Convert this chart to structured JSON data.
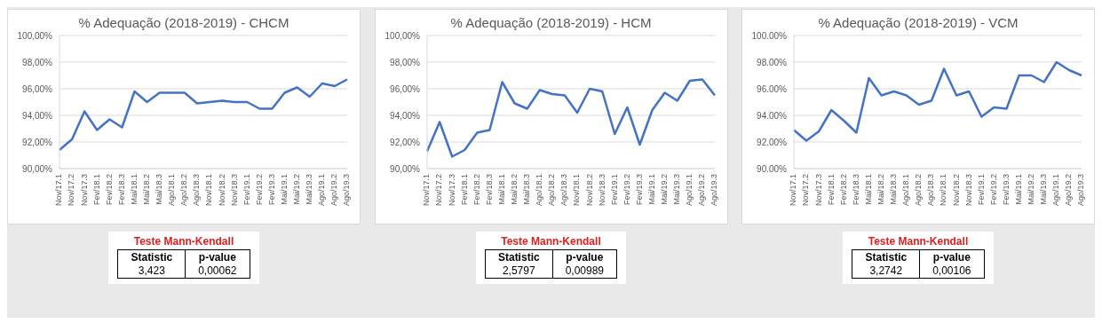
{
  "chart_data": [
    {
      "type": "line",
      "title": "% Adequação (2018-2019) - CHCM",
      "categories": [
        "Nov/17.1",
        "Nov/17.2",
        "Nov/17.3",
        "Fev/18.1",
        "Fev/18.2",
        "Fev/18.3",
        "Mai/18.1",
        "Mai/18.2",
        "Mai/18.3",
        "Ago/18.1",
        "Ago/18.2",
        "Ago/18.3",
        "Nov/18.1",
        "Nov/18.2",
        "Nov/18.3",
        "Fev/19.1",
        "Fev/19.2",
        "Fev/19.3",
        "Mai/19.1",
        "Mai/19.2",
        "Mai/19.3",
        "Ago/19.1",
        "Ago/19.2",
        "Ago/19.3"
      ],
      "series": [
        {
          "color": "#4472c4",
          "values": [
            91.4,
            92.2,
            94.3,
            92.9,
            93.7,
            93.1,
            95.8,
            95.0,
            95.7,
            95.7,
            95.7,
            94.9,
            95.0,
            95.1,
            95.0,
            95.0,
            94.5,
            94.5,
            95.7,
            96.1,
            95.4,
            96.4,
            96.2,
            96.7
          ]
        }
      ],
      "ylim": [
        90,
        100
      ],
      "yticks": [
        {
          "value": 90,
          "label": "90,00%"
        },
        {
          "value": 92,
          "label": "92,00%"
        },
        {
          "value": 94,
          "label": "94,00%"
        },
        {
          "value": 96,
          "label": "96,00%"
        },
        {
          "value": 98,
          "label": "98,00%"
        },
        {
          "value": 100,
          "label": "100,00%"
        }
      ],
      "grid": "y",
      "annotations": [
        "Teste Mann-Kendall",
        "Statistic",
        "p-value",
        "3,423",
        "0,00062"
      ]
    },
    {
      "type": "line",
      "title": "% Adequação (2018-2019) - HCM",
      "categories": [
        "Nov/17.1",
        "Nov/17.2",
        "Nov/17.3",
        "Fev/18.1",
        "Fev/18.2",
        "Fev/18.3",
        "Mai/18.1",
        "Mai/18.2",
        "Mai/18.3",
        "Ago/18.1",
        "Ago/18.2",
        "Ago/18.3",
        "Nov/18.1",
        "Nov/18.2",
        "Nov/18.3",
        "Fev/19.1",
        "Fev/19.2",
        "Fev/19.3",
        "Mai/19.1",
        "Mai/19.2",
        "Mai/19.3",
        "Ago/19.1",
        "Ago/19.2",
        "Ago/19.3"
      ],
      "series": [
        {
          "color": "#4472c4",
          "values": [
            91.3,
            93.5,
            90.9,
            91.4,
            92.7,
            92.9,
            96.5,
            94.9,
            94.5,
            95.9,
            95.6,
            95.5,
            94.2,
            96.0,
            95.8,
            92.6,
            94.6,
            91.8,
            94.4,
            95.7,
            95.1,
            96.6,
            96.7,
            95.5
          ]
        }
      ],
      "ylim": [
        90,
        100
      ],
      "yticks": [
        {
          "value": 90,
          "label": "90,00%"
        },
        {
          "value": 92,
          "label": "92,00%"
        },
        {
          "value": 94,
          "label": "94,00%"
        },
        {
          "value": 96,
          "label": "96,00%"
        },
        {
          "value": 98,
          "label": "98,00%"
        },
        {
          "value": 100,
          "label": "100,00%"
        }
      ],
      "grid": "y",
      "annotations": [
        "Teste Mann-Kendall",
        "Statistic",
        "p-value",
        "2,5797",
        "0,00989"
      ]
    },
    {
      "type": "line",
      "title": "% Adequação (2018-2019) - VCM",
      "categories": [
        "Nov/17.1",
        "Nov/17.2",
        "Nov/17.3",
        "Fev/18.1",
        "Fev/18.2",
        "Fev/18.3",
        "Mai/18.1",
        "Mai/18.2",
        "Mai/18.3",
        "Ago/18.1",
        "Ago/18.2",
        "Ago/18.3",
        "Nov/18.1",
        "Nov/18.2",
        "Nov/18.3",
        "Fev/19.1",
        "Fev/19.2",
        "Fev/19.3",
        "Mai/19.1",
        "Mai/19.2",
        "Mai/19.3",
        "Ago/19.1",
        "Ago/19.2",
        "Ago/19.3"
      ],
      "series": [
        {
          "color": "#4472c4",
          "values": [
            92.9,
            92.1,
            92.8,
            94.4,
            93.6,
            92.7,
            96.8,
            95.5,
            95.8,
            95.5,
            94.8,
            95.1,
            97.5,
            95.5,
            95.8,
            93.9,
            94.6,
            94.5,
            97.0,
            97.0,
            96.5,
            98.0,
            97.4,
            97.0
          ]
        }
      ],
      "ylim": [
        90,
        100
      ],
      "yticks": [
        {
          "value": 90,
          "label": "90.00%"
        },
        {
          "value": 92,
          "label": "92.00%"
        },
        {
          "value": 94,
          "label": "94.00%"
        },
        {
          "value": 96,
          "label": "96.00%"
        },
        {
          "value": 98,
          "label": "98.00%"
        },
        {
          "value": 100,
          "label": "100.00%"
        }
      ],
      "grid": "y",
      "annotations": [
        "Teste Mann-Kendall",
        "Statistic",
        "p-value",
        "3,2742",
        "0,00106"
      ]
    }
  ]
}
